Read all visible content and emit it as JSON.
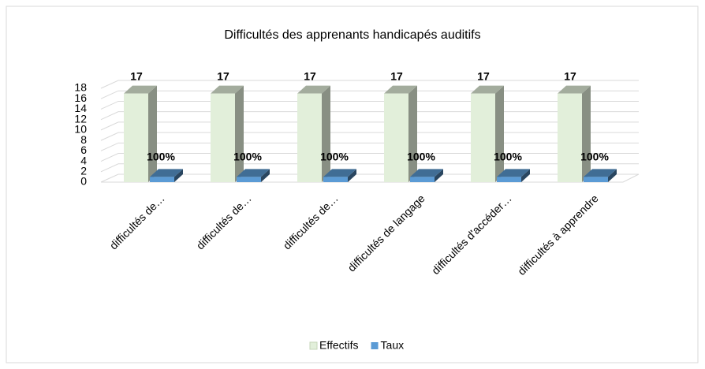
{
  "chart_data": {
    "type": "bar3d",
    "title": "Difficultés des apprenants handicapés auditifs",
    "categories": [
      "difficultés de…",
      "difficultés de…",
      "difficultés de…",
      "difficultés de langage",
      "difficultés d'accéder…",
      "difficultés à apprendre"
    ],
    "series": [
      {
        "name": "Effectifs",
        "color": "#e2efda",
        "values": [
          17,
          17,
          17,
          17,
          17,
          17
        ]
      },
      {
        "name": "Taux",
        "color": "#5b9bd5",
        "values": [
          1,
          1,
          1,
          1,
          1,
          1
        ],
        "value_labels": [
          "100%",
          "100%",
          "100%",
          "100%",
          "100%",
          "100%"
        ]
      }
    ],
    "ylim": [
      0,
      18
    ],
    "yticks": [
      0,
      2,
      4,
      6,
      8,
      10,
      12,
      14,
      16,
      18
    ],
    "grid": true,
    "legend": "bottom"
  }
}
